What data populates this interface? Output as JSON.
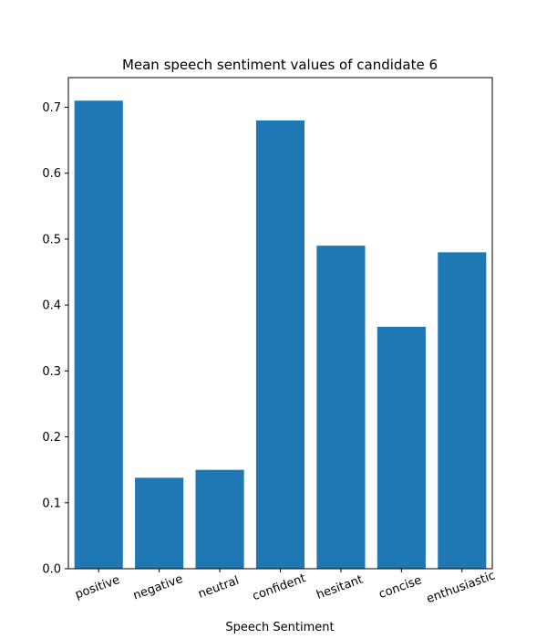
{
  "chart_data": {
    "type": "bar",
    "title": "Mean speech sentiment values of candidate 6",
    "xlabel": "Speech Sentiment",
    "ylabel": "",
    "categories": [
      "positive",
      "negative",
      "neutral",
      "confident",
      "hesitant",
      "concise",
      "enthusiastic"
    ],
    "values": [
      0.71,
      0.138,
      0.15,
      0.68,
      0.49,
      0.367,
      0.48
    ],
    "ylim": [
      0,
      0.745
    ],
    "yticks": [
      "0.0",
      "0.1",
      "0.2",
      "0.3",
      "0.4",
      "0.5",
      "0.6",
      "0.7"
    ],
    "grid": false,
    "bar_color": "#1f77b4",
    "xtick_rotation_deg": 20
  }
}
